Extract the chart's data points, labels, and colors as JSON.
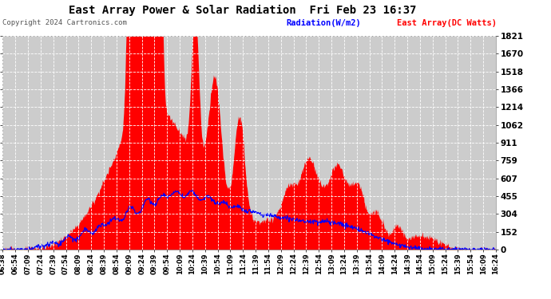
{
  "title": "East Array Power & Solar Radiation  Fri Feb 23 16:37",
  "copyright": "Copyright 2024 Cartronics.com",
  "legend_radiation": "Radiation(W/m2)",
  "legend_east_array": "East Array(DC Watts)",
  "ymax": 1821.3,
  "yticks": [
    0.0,
    151.8,
    303.5,
    455.3,
    607.1,
    758.9,
    910.6,
    1062.4,
    1214.2,
    1366.0,
    1517.7,
    1669.5,
    1821.3
  ],
  "bg_color": "#ffffff",
  "plot_bg_color": "#cccccc",
  "grid_color": "#ffffff",
  "fill_color": "#ff0000",
  "radiation_color": "#0000ff",
  "east_array_color": "#ff0000",
  "x_labels": [
    "06:38",
    "06:54",
    "07:09",
    "07:24",
    "07:39",
    "07:54",
    "08:09",
    "08:24",
    "08:39",
    "08:54",
    "09:09",
    "09:24",
    "09:39",
    "09:54",
    "10:09",
    "10:24",
    "10:39",
    "10:54",
    "11:09",
    "11:24",
    "11:39",
    "11:54",
    "12:09",
    "12:24",
    "12:39",
    "12:54",
    "13:09",
    "13:24",
    "13:39",
    "13:54",
    "14:09",
    "14:24",
    "14:39",
    "14:54",
    "15:09",
    "15:24",
    "15:39",
    "15:54",
    "16:09",
    "16:24"
  ],
  "n_points": 1000
}
